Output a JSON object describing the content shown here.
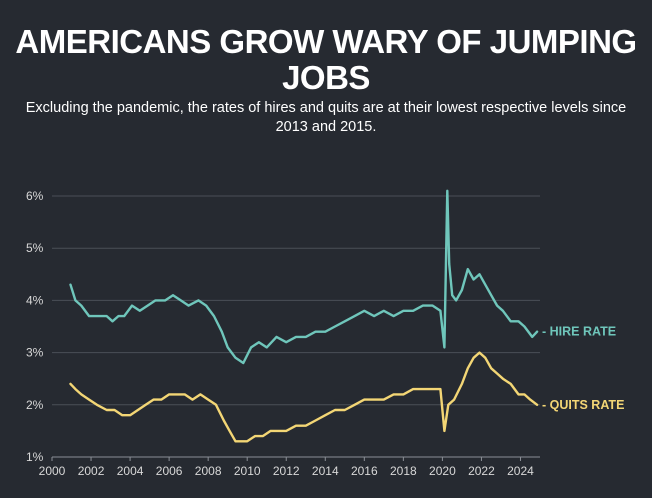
{
  "title": "AMERICANS GROW WARY OF JUMPING JOBS",
  "subtitle": "Excluding the pandemic, the rates of hires and quits are at their lowest respective levels since 2013 and 2015.",
  "colors": {
    "background": "#262a31",
    "gridline": "#4a4f57",
    "hire": "#6fc6bb",
    "quits": "#f3d675"
  },
  "chart_data": {
    "type": "line",
    "title": "AMERICANS GROW WARY OF JUMPING JOBS",
    "subtitle": "Excluding the pandemic, the rates of hires and quits are at their lowest respective levels since 2013 and 2015.",
    "xlabel": "",
    "ylabel": "",
    "xlim": [
      2000,
      2025
    ],
    "ylim": [
      1,
      6.5
    ],
    "grid": true,
    "x_ticks": [
      "2000",
      "2002",
      "2004",
      "2006",
      "2008",
      "2010",
      "2012",
      "2014",
      "2016",
      "2018",
      "2020",
      "2022",
      "2024"
    ],
    "y_ticks": [
      "1%",
      "2%",
      "3%",
      "4%",
      "5%",
      "6%"
    ],
    "legend": "inline-right",
    "series": [
      {
        "name": "HIRE RATE",
        "x": [
          2000.95,
          2001.2,
          2001.5,
          2001.9,
          2002.3,
          2002.8,
          2003.1,
          2003.4,
          2003.7,
          2004.1,
          2004.5,
          2004.9,
          2005.3,
          2005.8,
          2006.2,
          2006.6,
          2007.0,
          2007.5,
          2007.9,
          2008.3,
          2008.7,
          2009.0,
          2009.4,
          2009.8,
          2010.2,
          2010.6,
          2011.0,
          2011.5,
          2012.0,
          2012.5,
          2013.0,
          2013.5,
          2014.0,
          2014.5,
          2015.0,
          2015.5,
          2016.0,
          2016.5,
          2017.0,
          2017.5,
          2018.0,
          2018.5,
          2019.0,
          2019.5,
          2019.9,
          2020.1,
          2020.25,
          2020.35,
          2020.5,
          2020.7,
          2021.0,
          2021.3,
          2021.6,
          2021.9,
          2022.2,
          2022.5,
          2022.8,
          2023.1,
          2023.5,
          2023.9,
          2024.2,
          2024.6,
          2024.85
        ],
        "values": [
          4.3,
          4.0,
          3.9,
          3.7,
          3.7,
          3.7,
          3.6,
          3.7,
          3.7,
          3.9,
          3.8,
          3.9,
          4.0,
          4.0,
          4.1,
          4.0,
          3.9,
          4.0,
          3.9,
          3.7,
          3.4,
          3.1,
          2.9,
          2.8,
          3.1,
          3.2,
          3.1,
          3.3,
          3.2,
          3.3,
          3.3,
          3.4,
          3.4,
          3.5,
          3.6,
          3.7,
          3.8,
          3.7,
          3.8,
          3.7,
          3.8,
          3.8,
          3.9,
          3.9,
          3.8,
          3.1,
          6.1,
          4.7,
          4.1,
          4.0,
          4.2,
          4.6,
          4.4,
          4.5,
          4.3,
          4.1,
          3.9,
          3.8,
          3.6,
          3.6,
          3.5,
          3.3,
          3.4
        ]
      },
      {
        "name": "QUITS RATE",
        "x": [
          2000.95,
          2001.2,
          2001.5,
          2001.9,
          2002.3,
          2002.8,
          2003.2,
          2003.6,
          2004.0,
          2004.4,
          2004.8,
          2005.2,
          2005.6,
          2006.0,
          2006.4,
          2006.8,
          2007.2,
          2007.6,
          2008.0,
          2008.4,
          2008.8,
          2009.1,
          2009.4,
          2009.7,
          2010.0,
          2010.4,
          2010.8,
          2011.2,
          2011.6,
          2012.0,
          2012.5,
          2013.0,
          2013.5,
          2014.0,
          2014.5,
          2015.0,
          2015.5,
          2016.0,
          2016.5,
          2017.0,
          2017.5,
          2018.0,
          2018.5,
          2019.0,
          2019.5,
          2019.9,
          2020.1,
          2020.3,
          2020.6,
          2021.0,
          2021.3,
          2021.6,
          2021.9,
          2022.2,
          2022.5,
          2022.8,
          2023.1,
          2023.5,
          2023.9,
          2024.2,
          2024.5,
          2024.85
        ],
        "values": [
          2.4,
          2.3,
          2.2,
          2.1,
          2.0,
          1.9,
          1.9,
          1.8,
          1.8,
          1.9,
          2.0,
          2.1,
          2.1,
          2.2,
          2.2,
          2.2,
          2.1,
          2.2,
          2.1,
          2.0,
          1.7,
          1.5,
          1.3,
          1.3,
          1.3,
          1.4,
          1.4,
          1.5,
          1.5,
          1.5,
          1.6,
          1.6,
          1.7,
          1.8,
          1.9,
          1.9,
          2.0,
          2.1,
          2.1,
          2.1,
          2.2,
          2.2,
          2.3,
          2.3,
          2.3,
          2.3,
          1.5,
          2.0,
          2.1,
          2.4,
          2.7,
          2.9,
          3.0,
          2.9,
          2.7,
          2.6,
          2.5,
          2.4,
          2.2,
          2.2,
          2.1,
          2.0
        ]
      }
    ]
  }
}
